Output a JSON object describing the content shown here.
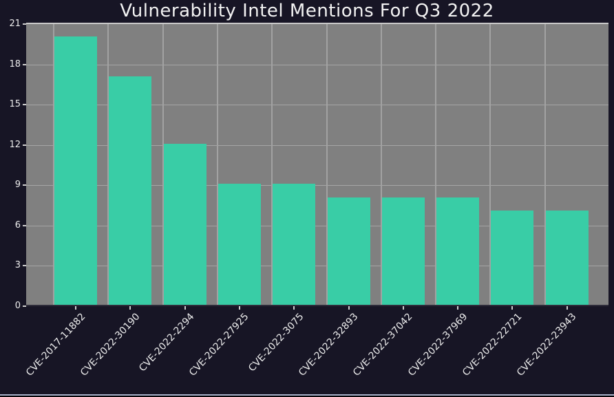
{
  "chart_data": {
    "type": "bar",
    "title": "Vulnerability Intel Mentions For Q3 2022",
    "categories": [
      "CVE-2017-11882",
      "CVE-2022-30190",
      "CVE-2022-2294",
      "CVE-2022-27925",
      "CVE-2022-3075",
      "CVE-2022-32893",
      "CVE-2022-37042",
      "CVE-2022-37969",
      "CVE-2022-22721",
      "CVE-2022-23943"
    ],
    "values": [
      20,
      17,
      12,
      9,
      9,
      8,
      8,
      8,
      7,
      7
    ],
    "xlabel": "",
    "ylabel": "",
    "ylim": [
      0,
      21
    ],
    "yticks": [
      0,
      3,
      6,
      9,
      12,
      15,
      18,
      21
    ],
    "grid": true,
    "legend": null,
    "colors": {
      "bar": "#39cda6",
      "plot_background": "#808080",
      "figure_background": "#171525",
      "gridline": "#a6a6a6",
      "text": "#ececec",
      "window_border": "#a9b2ca"
    }
  }
}
